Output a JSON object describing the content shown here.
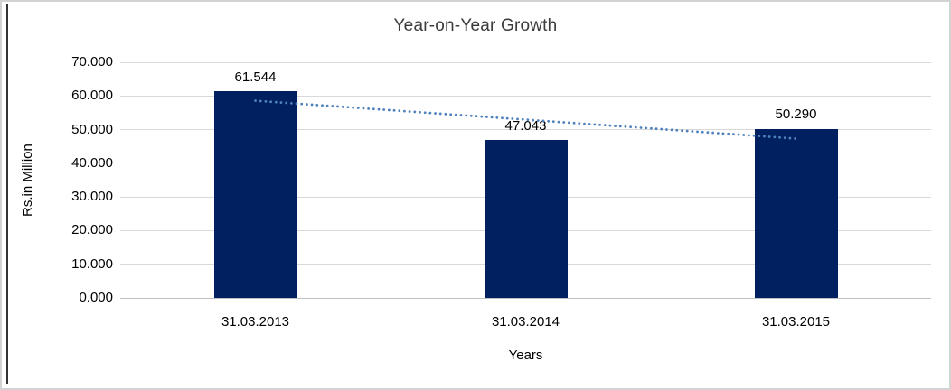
{
  "chart_data": {
    "type": "bar",
    "title": "Year-on-Year Growth",
    "categories": [
      "31.03.2013",
      "31.03.2014",
      "31.03.2015"
    ],
    "values": [
      61.544,
      47.043,
      50.29
    ],
    "data_labels": [
      "61.544",
      "47.043",
      "50.290"
    ],
    "xlabel": "Years",
    "ylabel": "Rs.in Million",
    "ylim": [
      0,
      70
    ],
    "ytick_step": 10,
    "ytick_labels": [
      "0.000",
      "10.000",
      "20.000",
      "30.000",
      "40.000",
      "50.000",
      "60.000",
      "70.000"
    ],
    "grid": true,
    "legend": "none",
    "bar_color": "#002060",
    "gridline_color": "#d9d9d9",
    "trendline": {
      "type": "linear",
      "style": "dotted",
      "color": "#4f81bd"
    }
  }
}
